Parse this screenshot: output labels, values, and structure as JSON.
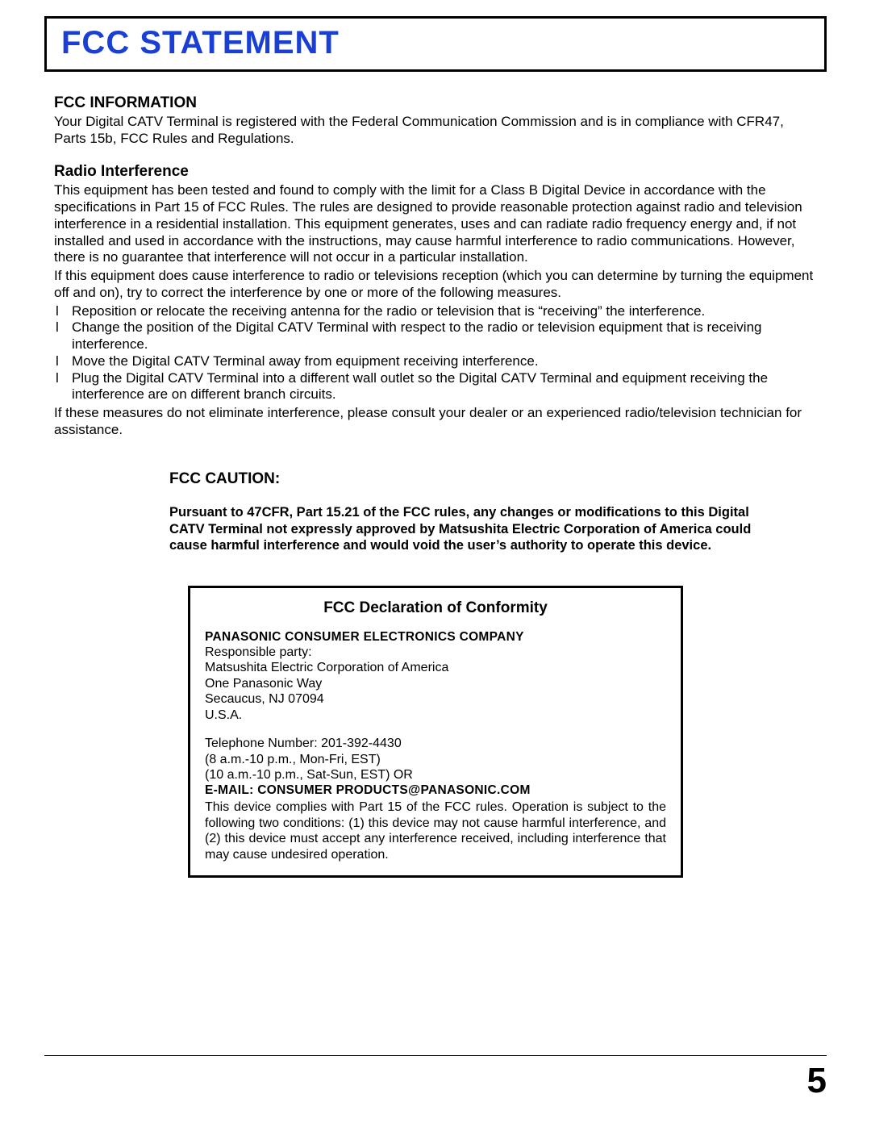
{
  "title": "FCC STATEMENT",
  "sections": {
    "fccInfo": {
      "heading": "FCC INFORMATION",
      "body": "Your Digital CATV Terminal is registered with the Federal Communication Commission and is in compliance with CFR47, Parts 15b, FCC Rules and Regulations."
    },
    "radio": {
      "heading": "Radio Interference",
      "body1": "This equipment has been tested and found to comply with the limit for a Class B Digital Device in accordance with the specifications in Part 15 of FCC Rules. The rules are designed to provide reasonable protection against radio and television interference in a residential installation. This equipment generates, uses and can radiate radio frequency energy and, if not installed and used in accordance with the instructions, may cause harmful interference to radio communications. However, there is no guarantee that interference will not occur in a particular installation.",
      "body2": "If this equipment does cause interference to radio or televisions reception (which you can determine by turning the equipment off and on), try to correct the interference by one or more of the following measures.",
      "bullets": [
        "Reposition or relocate the receiving antenna for the radio or television that is “receiving” the interference.",
        "Change the position of the Digital CATV Terminal with respect to the radio or television equipment that is receiving interference.",
        "Move the Digital CATV Terminal away from equipment receiving interference.",
        "Plug the Digital CATV Terminal into a different wall outlet so the Digital CATV Terminal and equipment receiving the interference are on different branch circuits."
      ],
      "body3": "If these measures do not eliminate interference, please consult your dealer or an experienced radio/television technician for assistance."
    },
    "caution": {
      "heading": "FCC CAUTION:",
      "body": "Pursuant to 47CFR, Part 15.21 of the FCC rules, any changes or modifications to this Digital CATV Terminal not expressly approved by Matsushita Electric Corporation of America could cause harmful interference and would void the user’s authority to operate this device."
    },
    "declaration": {
      "title": "FCC Declaration of Conformity",
      "company": "PANASONIC CONSUMER ELECTRONICS COMPANY",
      "respLabel": "Responsible party:",
      "respName": "Matsushita Electric Corporation of America",
      "addr1": "One Panasonic Way",
      "addr2": "Secaucus, NJ 07094",
      "addr3": "U.S.A.",
      "phone": "Telephone Number: 201-392-4430",
      "hours1": "(8 a.m.-10 p.m., Mon-Fri, EST)",
      "hours2": "(10 a.m.-10 p.m., Sat-Sun, EST) OR",
      "email": "E-MAIL: CONSUMER PRODUCTS@PANASONIC.COM",
      "compliance": "This device complies with Part 15 of the FCC rules. Operation is subject to the following two conditions: (1) this device may not cause harmful interference, and (2) this device must accept any interference received, including interference that may cause undesired operation."
    }
  },
  "pageNumber": "5",
  "bulletMarker": "l"
}
